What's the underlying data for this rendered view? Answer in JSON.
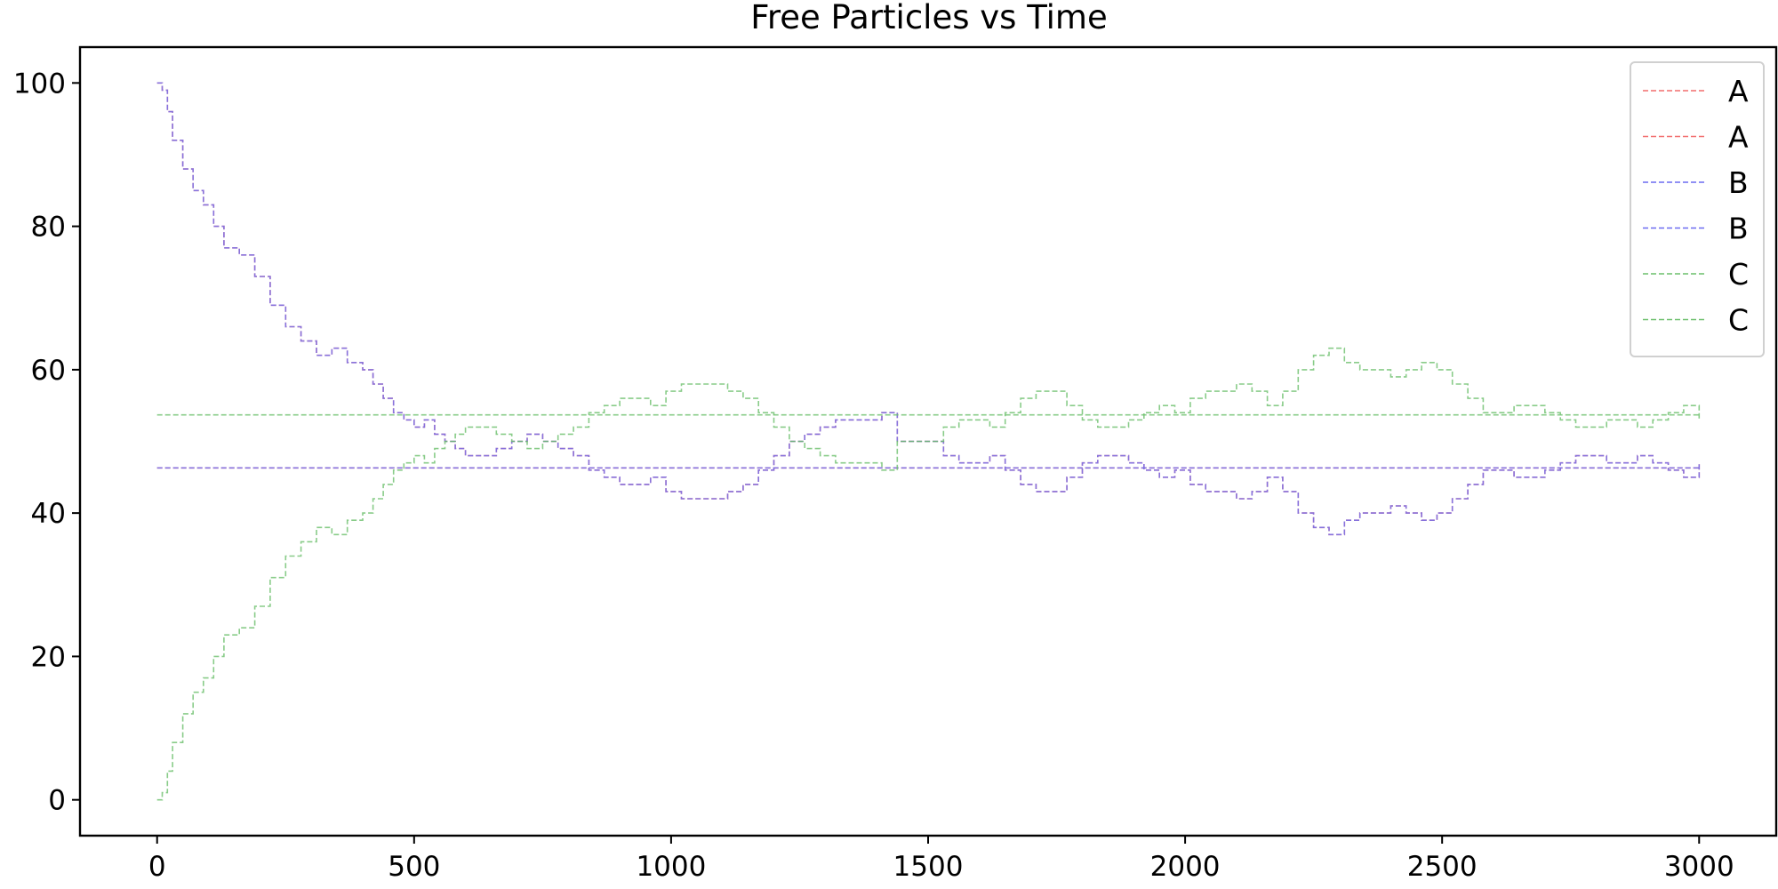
{
  "chart_data": {
    "type": "line",
    "title": "Free Particles vs Time",
    "xlabel": "",
    "ylabel": "",
    "xlim": [
      -150,
      3150
    ],
    "ylim": [
      -5,
      105
    ],
    "x_ticks": [
      0,
      500,
      1000,
      1500,
      2000,
      2500,
      3000
    ],
    "y_ticks": [
      0,
      20,
      40,
      60,
      80,
      100
    ],
    "grid": false,
    "legend_position": "top-right",
    "line_style": "dashed",
    "colors": {
      "A": "#f26d6d",
      "B": "#6b6bf0",
      "C": "#6cbf6c",
      "overlap": "#9b4fd0"
    },
    "series": [
      {
        "name": "A",
        "color": "#f26d6d",
        "x": [
          0,
          10,
          20,
          30,
          50,
          70,
          90,
          110,
          130,
          160,
          190,
          220,
          250,
          280,
          310,
          340,
          370,
          400,
          420,
          440,
          460,
          480,
          500,
          520,
          540,
          560,
          580,
          600,
          630,
          660,
          690,
          720,
          750,
          780,
          810,
          840,
          870,
          900,
          930,
          960,
          990,
          1020,
          1050,
          1080,
          1110,
          1140,
          1170,
          1200,
          1230,
          1260,
          1290,
          1320,
          1350,
          1380,
          1410,
          1440,
          1470,
          1500,
          1530,
          1560,
          1590,
          1620,
          1650,
          1680,
          1710,
          1740,
          1770,
          1800,
          1830,
          1860,
          1890,
          1920,
          1950,
          1980,
          2010,
          2040,
          2070,
          2100,
          2130,
          2160,
          2190,
          2220,
          2250,
          2280,
          2310,
          2340,
          2370,
          2400,
          2430,
          2460,
          2490,
          2520,
          2550,
          2580,
          2610,
          2640,
          2670,
          2700,
          2730,
          2760,
          2790,
          2820,
          2850,
          2880,
          2910,
          2940,
          2970,
          3000
        ],
        "values": [
          100,
          99,
          96,
          92,
          88,
          85,
          83,
          80,
          77,
          76,
          73,
          69,
          66,
          64,
          62,
          63,
          61,
          60,
          58,
          56,
          54,
          53,
          52,
          53,
          51,
          50,
          49,
          48,
          48,
          49,
          50,
          51,
          50,
          49,
          48,
          46,
          45,
          44,
          44,
          45,
          43,
          42,
          42,
          42,
          43,
          44,
          46,
          48,
          50,
          51,
          52,
          53,
          53,
          53,
          54,
          50,
          50,
          50,
          48,
          47,
          47,
          48,
          46,
          44,
          43,
          43,
          45,
          47,
          48,
          48,
          47,
          46,
          45,
          46,
          44,
          43,
          43,
          42,
          43,
          45,
          43,
          40,
          38,
          37,
          39,
          40,
          40,
          41,
          40,
          39,
          40,
          42,
          44,
          46,
          46,
          45,
          45,
          46,
          47,
          48,
          48,
          47,
          47,
          48,
          47,
          46,
          45,
          47
        ]
      },
      {
        "name": "A",
        "color": "#f26d6d",
        "x": [
          0,
          3000
        ],
        "values": [
          46.3,
          46.3
        ]
      },
      {
        "name": "B",
        "color": "#6b6bf0",
        "x": [
          0,
          10,
          20,
          30,
          50,
          70,
          90,
          110,
          130,
          160,
          190,
          220,
          250,
          280,
          310,
          340,
          370,
          400,
          420,
          440,
          460,
          480,
          500,
          520,
          540,
          560,
          580,
          600,
          630,
          660,
          690,
          720,
          750,
          780,
          810,
          840,
          870,
          900,
          930,
          960,
          990,
          1020,
          1050,
          1080,
          1110,
          1140,
          1170,
          1200,
          1230,
          1260,
          1290,
          1320,
          1350,
          1380,
          1410,
          1440,
          1470,
          1500,
          1530,
          1560,
          1590,
          1620,
          1650,
          1680,
          1710,
          1740,
          1770,
          1800,
          1830,
          1860,
          1890,
          1920,
          1950,
          1980,
          2010,
          2040,
          2070,
          2100,
          2130,
          2160,
          2190,
          2220,
          2250,
          2280,
          2310,
          2340,
          2370,
          2400,
          2430,
          2460,
          2490,
          2520,
          2550,
          2580,
          2610,
          2640,
          2670,
          2700,
          2730,
          2760,
          2790,
          2820,
          2850,
          2880,
          2910,
          2940,
          2970,
          3000
        ],
        "values": [
          100,
          99,
          96,
          92,
          88,
          85,
          83,
          80,
          77,
          76,
          73,
          69,
          66,
          64,
          62,
          63,
          61,
          60,
          58,
          56,
          54,
          53,
          52,
          53,
          51,
          50,
          49,
          48,
          48,
          49,
          50,
          51,
          50,
          49,
          48,
          46,
          45,
          44,
          44,
          45,
          43,
          42,
          42,
          42,
          43,
          44,
          46,
          48,
          50,
          51,
          52,
          53,
          53,
          53,
          54,
          50,
          50,
          50,
          48,
          47,
          47,
          48,
          46,
          44,
          43,
          43,
          45,
          47,
          48,
          48,
          47,
          46,
          45,
          46,
          44,
          43,
          43,
          42,
          43,
          45,
          43,
          40,
          38,
          37,
          39,
          40,
          40,
          41,
          40,
          39,
          40,
          42,
          44,
          46,
          46,
          45,
          45,
          46,
          47,
          48,
          48,
          47,
          47,
          48,
          47,
          46,
          45,
          47
        ]
      },
      {
        "name": "B",
        "color": "#6b6bf0",
        "x": [
          0,
          3000
        ],
        "values": [
          46.3,
          46.3
        ]
      },
      {
        "name": "C",
        "color": "#6cbf6c",
        "x": [
          0,
          10,
          20,
          30,
          50,
          70,
          90,
          110,
          130,
          160,
          190,
          220,
          250,
          280,
          310,
          340,
          370,
          400,
          420,
          440,
          460,
          480,
          500,
          520,
          540,
          560,
          580,
          600,
          630,
          660,
          690,
          720,
          750,
          780,
          810,
          840,
          870,
          900,
          930,
          960,
          990,
          1020,
          1050,
          1080,
          1110,
          1140,
          1170,
          1200,
          1230,
          1260,
          1290,
          1320,
          1350,
          1380,
          1410,
          1440,
          1470,
          1500,
          1530,
          1560,
          1590,
          1620,
          1650,
          1680,
          1710,
          1740,
          1770,
          1800,
          1830,
          1860,
          1890,
          1920,
          1950,
          1980,
          2010,
          2040,
          2070,
          2100,
          2130,
          2160,
          2190,
          2220,
          2250,
          2280,
          2310,
          2340,
          2370,
          2400,
          2430,
          2460,
          2490,
          2520,
          2550,
          2580,
          2610,
          2640,
          2670,
          2700,
          2730,
          2760,
          2790,
          2820,
          2850,
          2880,
          2910,
          2940,
          2970,
          3000
        ],
        "values": [
          0,
          1,
          4,
          8,
          12,
          15,
          17,
          20,
          23,
          24,
          27,
          31,
          34,
          36,
          38,
          37,
          39,
          40,
          42,
          44,
          46,
          47,
          48,
          47,
          49,
          50,
          51,
          52,
          52,
          51,
          50,
          49,
          50,
          51,
          52,
          54,
          55,
          56,
          56,
          55,
          57,
          58,
          58,
          58,
          57,
          56,
          54,
          52,
          50,
          49,
          48,
          47,
          47,
          47,
          46,
          50,
          50,
          50,
          52,
          53,
          53,
          52,
          54,
          56,
          57,
          57,
          55,
          53,
          52,
          52,
          53,
          54,
          55,
          54,
          56,
          57,
          57,
          58,
          57,
          55,
          57,
          60,
          62,
          63,
          61,
          60,
          60,
          59,
          60,
          61,
          60,
          58,
          56,
          54,
          54,
          55,
          55,
          54,
          53,
          52,
          52,
          53,
          53,
          52,
          53,
          54,
          55,
          53
        ]
      },
      {
        "name": "C",
        "color": "#6cbf6c",
        "x": [
          0,
          3000
        ],
        "values": [
          53.7,
          53.7
        ]
      }
    ]
  }
}
